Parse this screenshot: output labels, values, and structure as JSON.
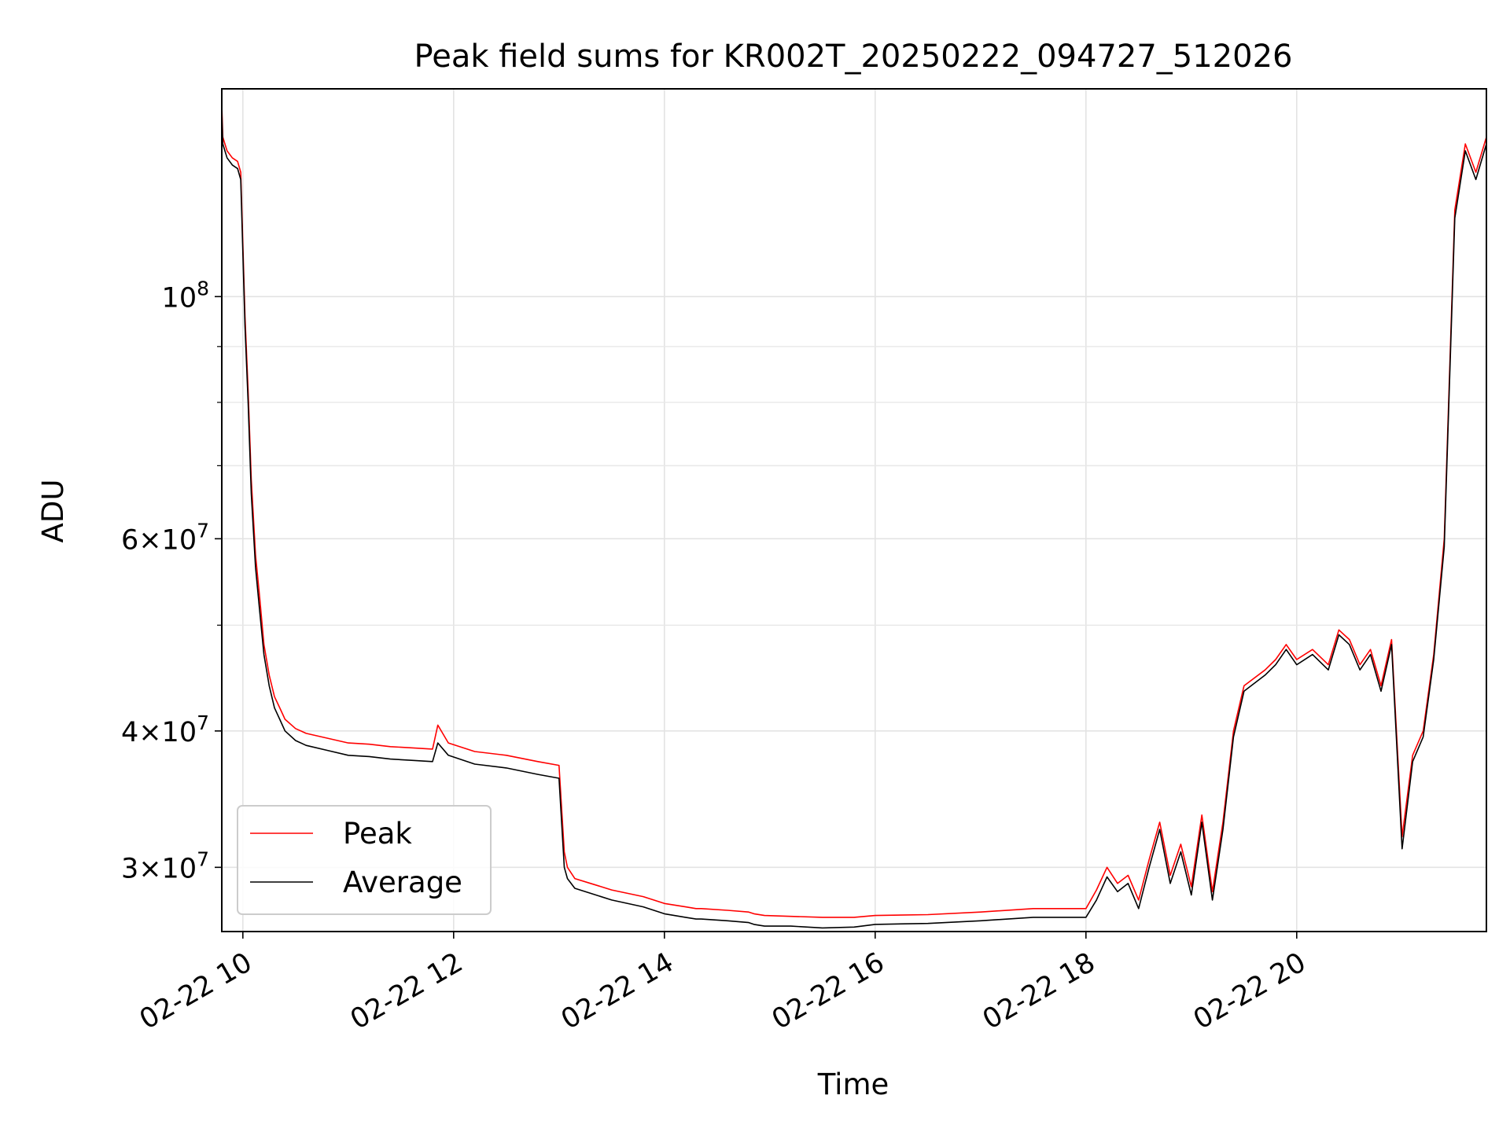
{
  "chart_data": {
    "type": "line",
    "title": "Peak field sums for KR002T_20250222_094727_512026",
    "xlabel": "Time",
    "ylabel": "ADU",
    "yscale": "log",
    "ylim": [
      26200000,
      155000000
    ],
    "xlim_hours": [
      9.8,
      21.8
    ],
    "x_ticks": [
      {
        "hour": 10,
        "label": "02-22 10"
      },
      {
        "hour": 12,
        "label": "02-22 12"
      },
      {
        "hour": 14,
        "label": "02-22 14"
      },
      {
        "hour": 16,
        "label": "02-22 16"
      },
      {
        "hour": 18,
        "label": "02-22 18"
      },
      {
        "hour": 20,
        "label": "02-22 20"
      }
    ],
    "y_ticks": [
      {
        "value": 30000000,
        "base": "3",
        "exp": "7"
      },
      {
        "value": 40000000,
        "base": "4",
        "exp": "7"
      },
      {
        "value": 60000000,
        "base": "6",
        "exp": "7"
      },
      {
        "value": 100000000,
        "base": "10",
        "exp": "8"
      }
    ],
    "y_minor": [
      50000000,
      70000000,
      80000000,
      90000000
    ],
    "grid": true,
    "legend_position": "lower-left",
    "series": [
      {
        "name": "Peak",
        "color": "#ff0000",
        "x_hours": [
          9.8,
          9.81,
          9.85,
          9.9,
          9.95,
          9.98,
          10.02,
          10.05,
          10.08,
          10.12,
          10.16,
          10.2,
          10.25,
          10.3,
          10.35,
          10.4,
          10.5,
          10.6,
          10.8,
          11.0,
          11.2,
          11.4,
          11.6,
          11.8,
          11.85,
          11.95,
          12.2,
          12.5,
          12.8,
          13.0,
          13.05,
          13.08,
          13.15,
          13.3,
          13.5,
          13.8,
          14.0,
          14.2,
          14.3,
          14.35,
          14.6,
          14.8,
          14.85,
          14.95,
          15.2,
          15.5,
          15.8,
          16.0,
          16.5,
          17.0,
          17.5,
          18.0,
          18.1,
          18.2,
          18.3,
          18.4,
          18.5,
          18.6,
          18.7,
          18.8,
          18.9,
          19.0,
          19.1,
          19.2,
          19.3,
          19.4,
          19.5,
          19.7,
          19.8,
          19.9,
          20.0,
          20.15,
          20.3,
          20.4,
          20.5,
          20.6,
          20.7,
          20.8,
          20.9,
          21.0,
          21.1,
          21.2,
          21.3,
          21.4,
          21.5,
          21.6,
          21.7,
          21.8
        ],
        "values": [
          150000000,
          140000000,
          136000000,
          134000000,
          133000000,
          130000000,
          96000000,
          82000000,
          68000000,
          58000000,
          53000000,
          48000000,
          45000000,
          43000000,
          42000000,
          41000000,
          40200000,
          39800000,
          39400000,
          39000000,
          38900000,
          38700000,
          38600000,
          38500000,
          40500000,
          39000000,
          38300000,
          38000000,
          37500000,
          37200000,
          31000000,
          30000000,
          29300000,
          29000000,
          28600000,
          28200000,
          27800000,
          27600000,
          27500000,
          27500000,
          27400000,
          27300000,
          27200000,
          27100000,
          27050000,
          27000000,
          27000000,
          27100000,
          27150000,
          27300000,
          27500000,
          27500000,
          28600000,
          30000000,
          29000000,
          29500000,
          28000000,
          30500000,
          33000000,
          29500000,
          31500000,
          28800000,
          33500000,
          28500000,
          33000000,
          40000000,
          44000000,
          45500000,
          46500000,
          48000000,
          46500000,
          47500000,
          46000000,
          49500000,
          48500000,
          46000000,
          47500000,
          44000000,
          48500000,
          32000000,
          38000000,
          40000000,
          47000000,
          60000000,
          120000000,
          138000000,
          130000000,
          140000000
        ]
      },
      {
        "name": "Average",
        "color": "#000000",
        "x_hours": [
          9.8,
          9.81,
          9.85,
          9.9,
          9.95,
          9.98,
          10.02,
          10.05,
          10.08,
          10.12,
          10.16,
          10.2,
          10.25,
          10.3,
          10.35,
          10.4,
          10.5,
          10.6,
          10.8,
          11.0,
          11.2,
          11.4,
          11.6,
          11.8,
          11.85,
          11.95,
          12.2,
          12.5,
          12.8,
          13.0,
          13.05,
          13.08,
          13.15,
          13.3,
          13.5,
          13.8,
          14.0,
          14.2,
          14.3,
          14.35,
          14.6,
          14.8,
          14.85,
          14.95,
          15.2,
          15.5,
          15.8,
          16.0,
          16.5,
          17.0,
          17.5,
          18.0,
          18.1,
          18.2,
          18.3,
          18.4,
          18.5,
          18.6,
          18.7,
          18.8,
          18.9,
          19.0,
          19.1,
          19.2,
          19.3,
          19.4,
          19.5,
          19.7,
          19.8,
          19.9,
          20.0,
          20.15,
          20.3,
          20.4,
          20.5,
          20.6,
          20.7,
          20.8,
          20.9,
          21.0,
          21.1,
          21.2,
          21.3,
          21.4,
          21.5,
          21.6,
          21.7,
          21.8
        ],
        "values": [
          148000000,
          138000000,
          134000000,
          132000000,
          131000000,
          128000000,
          94000000,
          80000000,
          66000000,
          56500000,
          51500000,
          47000000,
          44000000,
          42000000,
          41000000,
          40000000,
          39200000,
          38800000,
          38400000,
          38000000,
          37900000,
          37700000,
          37600000,
          37500000,
          39000000,
          38000000,
          37300000,
          37000000,
          36500000,
          36200000,
          30000000,
          29300000,
          28700000,
          28400000,
          28000000,
          27600000,
          27200000,
          27000000,
          26900000,
          26900000,
          26800000,
          26700000,
          26600000,
          26500000,
          26500000,
          26400000,
          26450000,
          26600000,
          26650000,
          26800000,
          27000000,
          27000000,
          28000000,
          29400000,
          28500000,
          29000000,
          27500000,
          30000000,
          32500000,
          29000000,
          31000000,
          28300000,
          33000000,
          28000000,
          32500000,
          39500000,
          43500000,
          45000000,
          46000000,
          47500000,
          46000000,
          47000000,
          45500000,
          49000000,
          48000000,
          45500000,
          47000000,
          43500000,
          48000000,
          31200000,
          37500000,
          39500000,
          46500000,
          59000000,
          118000000,
          136000000,
          128000000,
          138000000
        ]
      }
    ]
  }
}
